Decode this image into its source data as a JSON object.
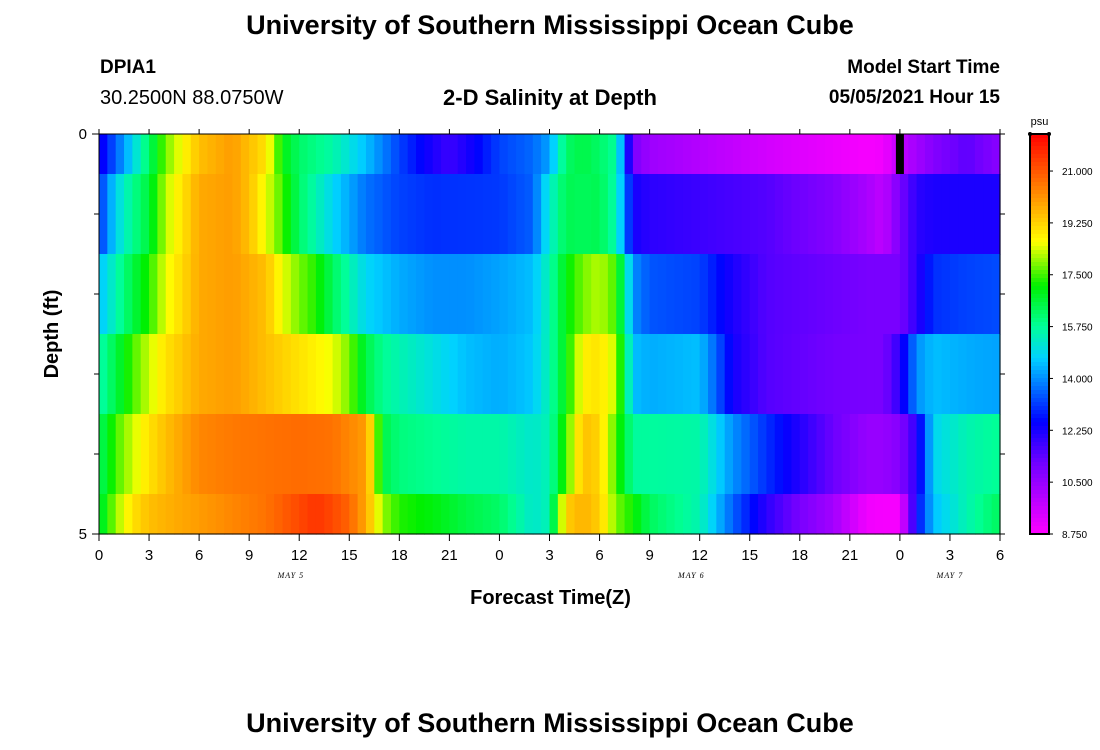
{
  "header": {
    "title": "University of Southern Mississippi Ocean Cube",
    "station_id": "DPIA1",
    "coords": "30.2500N  88.0750W",
    "chart_title": "2-D Salinity at Depth",
    "model_label": "Model Start Time",
    "model_time": "05/05/2021 Hour 15"
  },
  "footer": {
    "title": "University of Southern Mississippi Ocean Cube"
  },
  "chart_data": {
    "type": "heatmap",
    "title": "2-D Salinity at Depth",
    "xlabel": "Forecast Time(Z)",
    "ylabel": "Depth (ft)",
    "ylim": [
      0,
      5
    ],
    "y_ticks": [
      "0",
      "5"
    ],
    "x_tick_labels": [
      "0",
      "3",
      "6",
      "9",
      "12",
      "15",
      "18",
      "21",
      "0",
      "3",
      "6",
      "9",
      "12",
      "15",
      "18",
      "21",
      "0",
      "3",
      "6"
    ],
    "x_hours": [
      0,
      3,
      6,
      9,
      12,
      15,
      18,
      21,
      24,
      27,
      30,
      33,
      36,
      39,
      42,
      45,
      48,
      51,
      54
    ],
    "x_range_hours": [
      0,
      54
    ],
    "day_labels": [
      {
        "text": "MAY 5",
        "hour": 11.5
      },
      {
        "text": "MAY 6",
        "hour": 35.5
      },
      {
        "text": "MAY 7",
        "hour": 51
      }
    ],
    "colorbar": {
      "units": "psu",
      "min": 8.75,
      "max": 22.25,
      "tick_labels": [
        "21.000",
        "19.250",
        "17.500",
        "15.750",
        "14.000",
        "12.250",
        "10.500",
        "8.750"
      ],
      "tick_values": [
        21.0,
        19.25,
        17.5,
        15.75,
        14.0,
        12.25,
        10.5,
        8.75
      ]
    },
    "depth_layers": [
      0.25,
      1.25,
      2.25,
      3.25,
      4.25,
      4.75
    ],
    "rows": [
      {
        "hours": [
          0,
          1,
          2,
          3,
          4,
          6,
          8,
          10,
          11,
          12,
          14,
          16,
          18,
          20,
          21,
          22,
          24,
          26,
          27,
          28,
          29,
          30,
          31,
          32,
          33,
          36,
          40,
          44,
          46,
          47,
          48,
          49,
          50,
          52,
          54
        ],
        "values": [
          12.2,
          13.5,
          14.8,
          16.2,
          17.8,
          19.5,
          20.0,
          19.0,
          17.0,
          16.2,
          15.6,
          14.5,
          13.2,
          12.2,
          11.8,
          12.2,
          13.2,
          13.6,
          14.2,
          16.2,
          16.5,
          16.2,
          15.7,
          11.0,
          10.4,
          10.0,
          9.5,
          9.1,
          8.9,
          9.0,
          9.8,
          10.3,
          10.8,
          11.4,
          10.7
        ]
      },
      {
        "hours": [
          0,
          1,
          2,
          3,
          4,
          6,
          8,
          9,
          10,
          11,
          12,
          14,
          16,
          18,
          20,
          24,
          26,
          27,
          28,
          29,
          30,
          31,
          32,
          33,
          36,
          40,
          44,
          46,
          47,
          48,
          49,
          50,
          52,
          54
        ],
        "values": [
          13.0,
          14.8,
          15.8,
          16.6,
          18.2,
          19.8,
          20.0,
          19.5,
          18.5,
          17.5,
          16.2,
          14.8,
          13.7,
          13.2,
          13.0,
          13.1,
          13.5,
          15.2,
          16.4,
          16.3,
          16.4,
          15.5,
          12.3,
          12.0,
          11.8,
          11.5,
          10.8,
          10.2,
          9.8,
          11.0,
          12.0,
          12.2,
          12.2,
          12.2
        ]
      },
      {
        "hours": [
          0,
          1,
          2,
          3,
          4,
          6,
          8,
          10,
          11,
          12,
          13,
          14,
          16,
          18,
          20,
          22,
          24,
          26,
          27,
          28,
          29,
          30,
          31,
          32,
          33,
          36,
          38,
          40,
          44,
          46,
          47,
          48,
          49,
          50,
          52,
          54
        ],
        "values": [
          14.5,
          15.5,
          16.5,
          17.3,
          18.5,
          19.8,
          20.0,
          19.5,
          18.5,
          17.8,
          17.3,
          16.3,
          14.8,
          14.3,
          14.0,
          14.0,
          14.2,
          14.5,
          15.5,
          17.0,
          17.8,
          18.2,
          17.5,
          14.0,
          13.4,
          13.2,
          12.2,
          11.5,
          11.2,
          11.0,
          11.0,
          11.0,
          12.0,
          13.0,
          13.2,
          13.3
        ]
      },
      {
        "hours": [
          0,
          1,
          2,
          3,
          4,
          6,
          8,
          10,
          12,
          14,
          15,
          16,
          17,
          18,
          20,
          22,
          24,
          26,
          27,
          28,
          29,
          30,
          31,
          32,
          33,
          36,
          37,
          38,
          40,
          44,
          46,
          47,
          48,
          49,
          50,
          52,
          54
        ],
        "values": [
          15.5,
          16.5,
          17.5,
          18.3,
          19.0,
          19.8,
          20.0,
          19.5,
          19.0,
          18.5,
          17.8,
          16.5,
          15.8,
          15.5,
          15.0,
          14.5,
          14.3,
          14.6,
          15.5,
          17.0,
          18.8,
          19.0,
          18.2,
          14.5,
          14.3,
          14.5,
          13.5,
          12.3,
          11.5,
          11.1,
          11.0,
          11.0,
          12.0,
          14.0,
          14.5,
          14.3,
          14.2
        ]
      },
      {
        "hours": [
          0,
          1,
          2,
          3,
          4,
          6,
          8,
          10,
          12,
          14,
          16,
          16.5,
          17,
          18,
          20,
          22,
          24,
          26,
          27,
          28,
          29,
          30,
          31,
          32,
          33,
          36,
          38,
          40,
          44,
          46,
          47,
          48,
          49,
          50,
          52,
          54
        ],
        "values": [
          16.2,
          17.5,
          18.3,
          19.0,
          19.5,
          20.3,
          20.5,
          20.6,
          20.7,
          20.6,
          20.0,
          18.5,
          16.5,
          16.0,
          15.8,
          15.6,
          15.6,
          15.2,
          15.5,
          17.5,
          19.5,
          19.2,
          17.5,
          15.7,
          15.7,
          15.6,
          14.0,
          13.0,
          11.2,
          10.5,
          10.5,
          10.8,
          12.0,
          14.8,
          15.5,
          15.8,
          16.0
        ]
      },
      {
        "hours": [
          0,
          1,
          2,
          3,
          4,
          6,
          8,
          10,
          12,
          13,
          14,
          15,
          16,
          17,
          18,
          20,
          22,
          24,
          26,
          27,
          28,
          29,
          30,
          31,
          32,
          33,
          34,
          36,
          38,
          40,
          42,
          44,
          46,
          47,
          48,
          49,
          50,
          52,
          54
        ],
        "values": [
          16.5,
          18.0,
          19.0,
          19.5,
          19.7,
          20.0,
          20.3,
          20.6,
          21.2,
          21.5,
          21.2,
          20.8,
          19.8,
          18.0,
          17.3,
          17.0,
          16.5,
          16.2,
          15.2,
          15.5,
          19.3,
          19.7,
          19.3,
          17.8,
          17.2,
          16.3,
          16.0,
          15.5,
          13.5,
          12.0,
          11.0,
          10.3,
          9.0,
          8.9,
          8.9,
          12.5,
          14.5,
          15.5,
          16.3
        ]
      }
    ],
    "annotation_hour": 48
  }
}
